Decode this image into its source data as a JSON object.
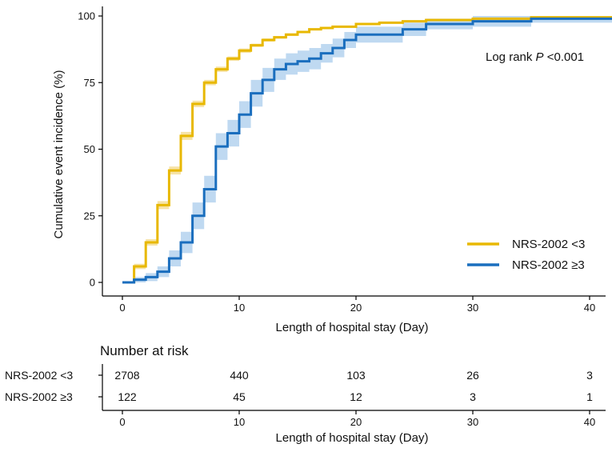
{
  "chart_data": {
    "type": "line",
    "subtype": "kaplan-meier cumulative incidence",
    "xlabel": "Length of hospital stay (Day)",
    "ylabel": "Cumulative event incidence (%)",
    "xlim": [
      -2,
      42
    ],
    "ylim": [
      0,
      100
    ],
    "xticks": [
      0,
      10,
      20,
      30,
      40
    ],
    "yticks": [
      0,
      25,
      50,
      75,
      100
    ],
    "annotation": {
      "prefix": "Log rank ",
      "p": "P",
      "suffix": " <0.001"
    },
    "legend_position": "lower-right",
    "series": [
      {
        "name": "NRS-2002 <3",
        "color": "#E8B800",
        "band_color": "#F3D98A",
        "points": [
          [
            0,
            0
          ],
          [
            1,
            6
          ],
          [
            2,
            15
          ],
          [
            3,
            29
          ],
          [
            4,
            42
          ],
          [
            5,
            55
          ],
          [
            6,
            67
          ],
          [
            7,
            75
          ],
          [
            8,
            80
          ],
          [
            9,
            84
          ],
          [
            10,
            87
          ],
          [
            11,
            89
          ],
          [
            12,
            91
          ],
          [
            13,
            92
          ],
          [
            14,
            93
          ],
          [
            15,
            94
          ],
          [
            16,
            95
          ],
          [
            17,
            95.5
          ],
          [
            18,
            96
          ],
          [
            20,
            97
          ],
          [
            22,
            97.5
          ],
          [
            24,
            98
          ],
          [
            26,
            98.5
          ],
          [
            30,
            99
          ],
          [
            35,
            99.5
          ],
          [
            42,
            100
          ]
        ],
        "ci_half_width": [
          0,
          1,
          1.2,
          1.5,
          1.5,
          1.5,
          1.2,
          1,
          1,
          0.8,
          0.8,
          0.6,
          0.6,
          0.5,
          0.5,
          0.4,
          0.4,
          0.3,
          0.3,
          0.3,
          0.3,
          0.2,
          0.2,
          0.2,
          0.1,
          0
        ]
      },
      {
        "name": "NRS-2002 ≥3",
        "color": "#1A6EBE",
        "band_color": "#A9CCEC",
        "points": [
          [
            0,
            0
          ],
          [
            1,
            1
          ],
          [
            2,
            2
          ],
          [
            3,
            4
          ],
          [
            4,
            9
          ],
          [
            5,
            15
          ],
          [
            6,
            25
          ],
          [
            7,
            35
          ],
          [
            8,
            51
          ],
          [
            9,
            56
          ],
          [
            10,
            63
          ],
          [
            11,
            71
          ],
          [
            12,
            76
          ],
          [
            13,
            80
          ],
          [
            14,
            82
          ],
          [
            15,
            83
          ],
          [
            16,
            84
          ],
          [
            17,
            86
          ],
          [
            18,
            88
          ],
          [
            19,
            91
          ],
          [
            20,
            93
          ],
          [
            24,
            95
          ],
          [
            26,
            97
          ],
          [
            30,
            98
          ],
          [
            35,
            99
          ],
          [
            42,
            99
          ]
        ],
        "ci_half_width": [
          0,
          1,
          1.5,
          2,
          3,
          4,
          5,
          5,
          5,
          5,
          5,
          5,
          4.5,
          4,
          4,
          4,
          4,
          3.5,
          3.5,
          3,
          3,
          2.5,
          2,
          2,
          1.5,
          1.5
        ]
      }
    ],
    "risk_table": {
      "title": "Number at risk",
      "times": [
        0,
        10,
        20,
        30,
        40
      ],
      "xlabel": "Length of hospital stay (Day)",
      "rows": [
        {
          "label": "NRS-2002 <3",
          "values": [
            "2708",
            "440",
            "103",
            "26",
            "3"
          ]
        },
        {
          "label": "NRS-2002 ≥3",
          "values": [
            "122",
            "45",
            "12",
            "3",
            "1"
          ]
        }
      ]
    }
  }
}
